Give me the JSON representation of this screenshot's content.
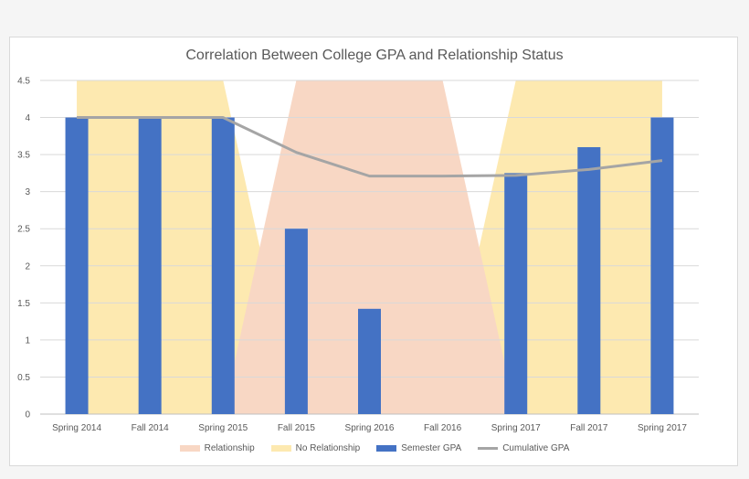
{
  "chart_data": {
    "type": "bar",
    "title": "Correlation Between College GPA and Relationship Status",
    "categories": [
      "Spring 2014",
      "Fall 2014",
      "Spring 2015",
      "Fall 2015",
      "Spring 2016",
      "Fall 2016",
      "Spring 2017",
      "Fall 2017",
      "Spring 2017"
    ],
    "ylim": [
      0,
      4.5
    ],
    "yticks": [
      "0",
      "0.5",
      "1",
      "1.5",
      "2",
      "2.5",
      "3",
      "3.5",
      "4",
      "4.5"
    ],
    "grid": true,
    "legend_position": "bottom",
    "series": [
      {
        "name": "Semester GPA",
        "kind": "bar",
        "color": "#4472c4",
        "values": [
          4.0,
          4.0,
          4.0,
          2.5,
          1.42,
          null,
          3.25,
          3.6,
          4.0
        ]
      },
      {
        "name": "Cumulative GPA",
        "kind": "line",
        "color": "#a5a5a5",
        "values": [
          4.0,
          4.0,
          4.0,
          3.53,
          3.21,
          3.21,
          3.22,
          3.3,
          3.42
        ]
      }
    ],
    "background_areas": [
      {
        "name": "Relationship",
        "color": "#f8d7c4",
        "values": [
          0,
          0,
          0,
          4.5,
          4.5,
          4.5,
          0,
          0,
          0
        ]
      },
      {
        "name": "No Relationship",
        "color": "#fde9b0",
        "values": [
          4.5,
          4.5,
          4.5,
          0,
          0,
          0,
          4.5,
          4.5,
          4.5
        ]
      }
    ]
  }
}
